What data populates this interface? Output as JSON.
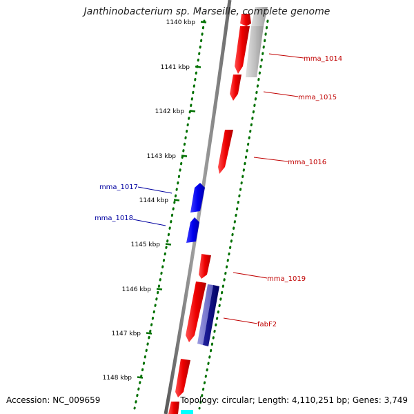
{
  "title": "Janthinobacterium sp. Marseille, complete genome",
  "footer": {
    "accession": "Accession: NC_009659",
    "summary": "Topology: circular; Length: 4,110,251 bp; Genes: 3,749"
  },
  "colors": {
    "forward_gene": "#ff0000",
    "reverse_gene": "#0000ff",
    "tick": "#007000",
    "backbone": "#808080",
    "forward_label": "#c00000",
    "reverse_label": "#0000a0",
    "rna_or_other": "#b0b0b0",
    "dark_blue_feature": "#000080",
    "cyan_feature": "#00ffff"
  },
  "kbp_ticks": [
    "1140 kbp",
    "1141 kbp",
    "1142 kbp",
    "1143 kbp",
    "1144 kbp",
    "1145 kbp",
    "1146 kbp",
    "1147 kbp",
    "1148 kbp"
  ],
  "gene_labels": [
    {
      "text": "mma_1014",
      "strand": "forward"
    },
    {
      "text": "mma_1015",
      "strand": "forward"
    },
    {
      "text": "mma_1016",
      "strand": "forward"
    },
    {
      "text": "mma_1017",
      "strand": "reverse"
    },
    {
      "text": "mma_1018",
      "strand": "reverse"
    },
    {
      "text": "mma_1019",
      "strand": "forward"
    },
    {
      "text": "fabF2",
      "strand": "forward"
    }
  ]
}
